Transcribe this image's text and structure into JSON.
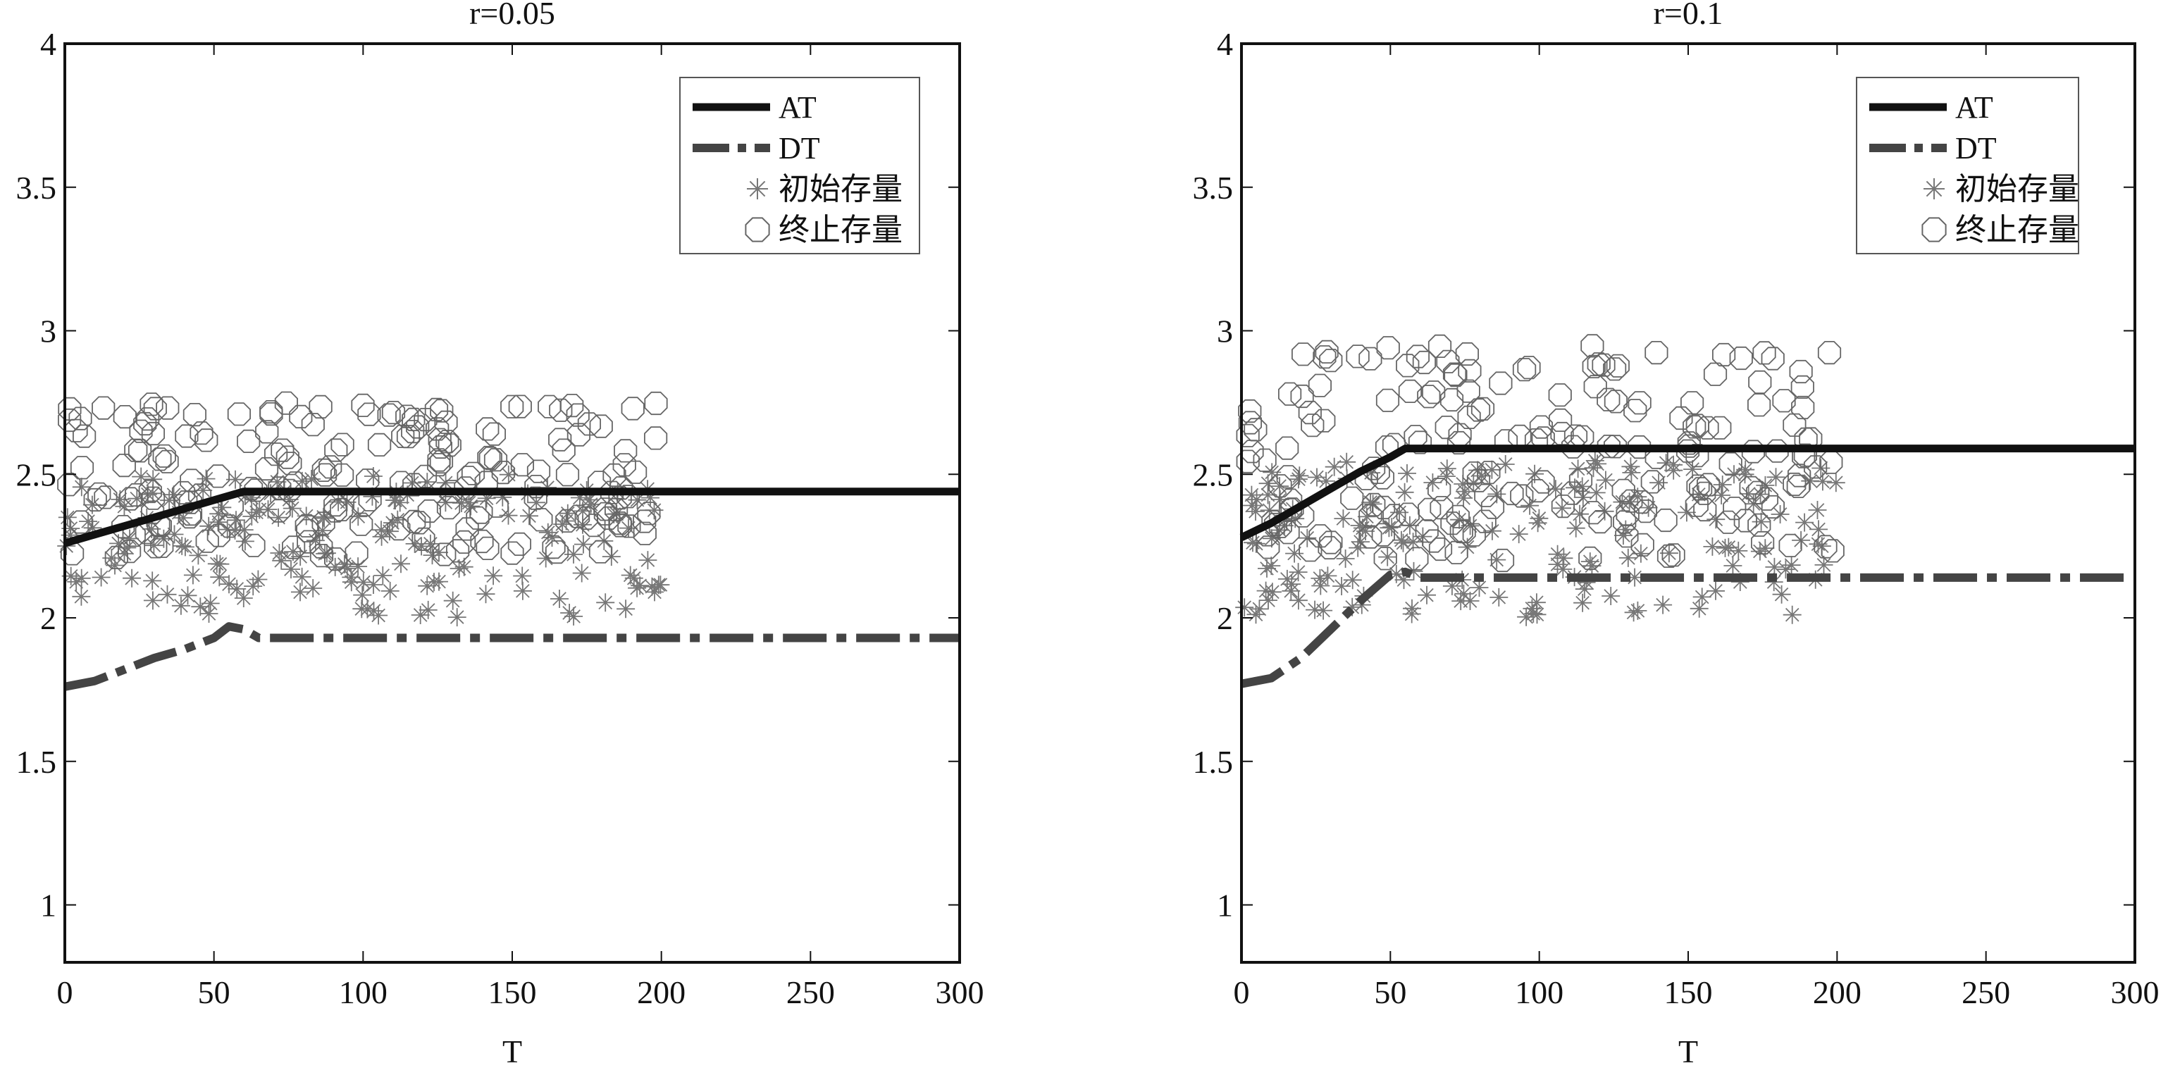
{
  "chart_data": [
    {
      "type": "line",
      "title": "r=0.05",
      "xlabel": "T",
      "ylabel": "",
      "xlim": [
        0,
        300
      ],
      "ylim": [
        0.8,
        4
      ],
      "xticks": [
        0,
        50,
        100,
        150,
        200,
        250,
        300
      ],
      "yticks": [
        1,
        1.5,
        2,
        2.5,
        3,
        3.5,
        4
      ],
      "grid": false,
      "legend_position": "top-right",
      "series": [
        {
          "name": "AT",
          "style": "solid",
          "color": "#111111",
          "x": [
            0,
            10,
            20,
            30,
            40,
            50,
            60,
            300
          ],
          "y": [
            2.26,
            2.29,
            2.32,
            2.35,
            2.38,
            2.41,
            2.44,
            2.44
          ]
        },
        {
          "name": "DT",
          "style": "dashdot",
          "color": "#444444",
          "x": [
            0,
            10,
            20,
            30,
            40,
            50,
            55,
            60,
            65,
            300
          ],
          "y": [
            1.76,
            1.78,
            1.82,
            1.86,
            1.89,
            1.93,
            1.97,
            1.96,
            1.93,
            1.93
          ]
        },
        {
          "name": "初始存量",
          "marker": "asterisk",
          "color": "#777777",
          "x_range": [
            0,
            200
          ],
          "y_range": [
            2.0,
            2.5
          ],
          "count": 200
        },
        {
          "name": "终止存量",
          "marker": "circle",
          "color": "#666666",
          "x_range": [
            0,
            200
          ],
          "y_range": [
            2.2,
            2.75
          ],
          "count": 200
        }
      ]
    },
    {
      "type": "line",
      "title": "r=0.1",
      "xlabel": "T",
      "ylabel": "",
      "xlim": [
        0,
        300
      ],
      "ylim": [
        0.8,
        4
      ],
      "xticks": [
        0,
        50,
        100,
        150,
        200,
        250,
        300
      ],
      "yticks": [
        1,
        1.5,
        2,
        2.5,
        3,
        3.5,
        4
      ],
      "grid": false,
      "legend_position": "top-right",
      "series": [
        {
          "name": "AT",
          "style": "solid",
          "color": "#111111",
          "x": [
            0,
            10,
            20,
            30,
            40,
            50,
            55,
            300
          ],
          "y": [
            2.28,
            2.33,
            2.39,
            2.45,
            2.51,
            2.56,
            2.59,
            2.59
          ]
        },
        {
          "name": "DT",
          "style": "dashdot",
          "color": "#444444",
          "x": [
            0,
            10,
            20,
            30,
            40,
            50,
            55,
            60,
            300
          ],
          "y": [
            1.77,
            1.79,
            1.86,
            1.96,
            2.06,
            2.15,
            2.16,
            2.14,
            2.14
          ]
        },
        {
          "name": "初始存量",
          "marker": "asterisk",
          "color": "#777777",
          "x_range": [
            0,
            200
          ],
          "y_range": [
            2.0,
            2.55
          ],
          "count": 200
        },
        {
          "name": "终止存量",
          "marker": "circle",
          "color": "#666666",
          "x_range": [
            0,
            200
          ],
          "y_range": [
            2.2,
            2.95
          ],
          "count": 200
        }
      ]
    }
  ]
}
